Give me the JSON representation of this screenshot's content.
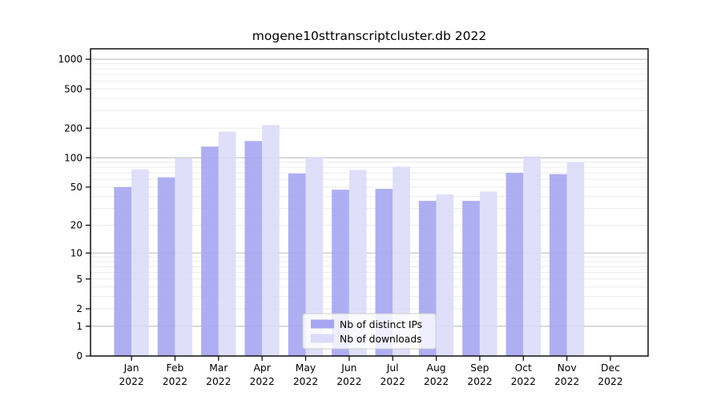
{
  "figure": {
    "background": "#ffffff"
  },
  "chart_data": {
    "type": "bar",
    "title": "mogene10sttranscriptcluster.db 2022",
    "categories": [
      "Jan 2022",
      "Feb 2022",
      "Mar 2022",
      "Apr 2022",
      "May 2022",
      "Jun 2022",
      "Jul 2022",
      "Aug 2022",
      "Sep 2022",
      "Oct 2022",
      "Nov 2022",
      "Dec 2022"
    ],
    "series": [
      {
        "name": "Nb of distinct IPs",
        "color": "#a5a5f1",
        "values": [
          50,
          63,
          130,
          148,
          69,
          47,
          48,
          36,
          36,
          70,
          68,
          0
        ]
      },
      {
        "name": "Nb of downloads",
        "color": "#dcdcfa",
        "values": [
          76,
          99,
          184,
          215,
          102,
          75,
          81,
          42,
          45,
          103,
          90,
          0
        ]
      }
    ],
    "xlabel": "",
    "ylabel": "",
    "y_ticks": [
      0,
      1,
      2,
      5,
      10,
      20,
      50,
      100,
      200,
      500,
      1000
    ],
    "y_scale": "log2(1+value), 0 at baseline",
    "ylim": [
      0,
      1275
    ],
    "grid": {
      "major_at": [
        1,
        10,
        100,
        1000
      ],
      "minor_at": "2-9, 20-90, 200-900",
      "major_color": "#bdbdbd",
      "minor_color": "#ececec"
    },
    "legend": {
      "position": "inside bottom-center",
      "entries": [
        "Nb of distinct IPs",
        "Nb of downloads"
      ],
      "border_color": "#cccccc"
    },
    "axis_color": "#000000"
  }
}
